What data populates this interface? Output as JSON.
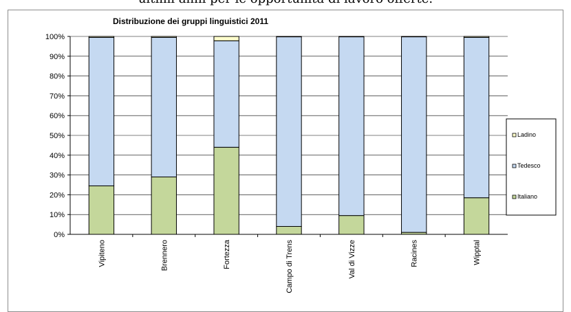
{
  "page": {
    "caption": "ultimi anni per le opportunità di lavoro offerte."
  },
  "chart_data": {
    "type": "bar",
    "stacked": true,
    "title": "Distribuzione dei gruppi linguistici 2011",
    "xlabel": "",
    "ylabel": "",
    "categories": [
      "Vipiteno",
      "Brennero",
      "Fortezza",
      "Campo di Trens",
      "Val di Vizze",
      "Racines",
      "Wipptal"
    ],
    "yticks": [
      "0%",
      "10%",
      "20%",
      "30%",
      "40%",
      "50%",
      "60%",
      "70%",
      "80%",
      "90%",
      "100%"
    ],
    "ylim": [
      0,
      100
    ],
    "grid": true,
    "legend_position": "right",
    "series": [
      {
        "name": "Italiano",
        "color": "#c4d79b",
        "values": [
          24.5,
          29,
          44,
          4,
          9.5,
          1,
          18.5
        ]
      },
      {
        "name": "Tedesco",
        "color": "#c5d9f1",
        "values": [
          75,
          70.5,
          53.8,
          95.8,
          90.3,
          98.8,
          81
        ]
      },
      {
        "name": "Ladino",
        "color": "#ffffcc",
        "values": [
          0.5,
          0.5,
          2.2,
          0.2,
          0.2,
          0.2,
          0.5
        ]
      }
    ],
    "legend_order": [
      "Ladino",
      "Tedesco",
      "Italiano"
    ]
  }
}
